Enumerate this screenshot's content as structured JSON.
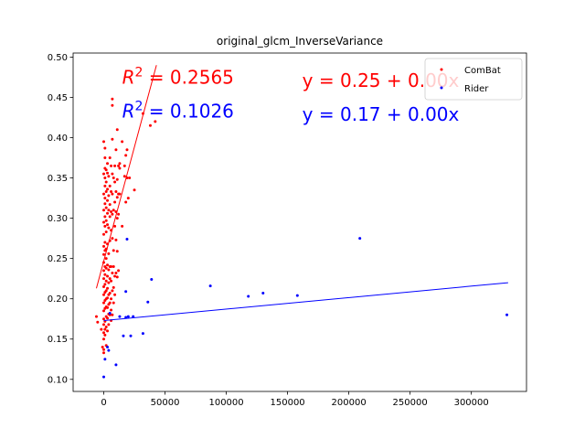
{
  "chart_data": {
    "type": "scatter",
    "title": "original_glcm_InverseVariance",
    "xlabel": "",
    "ylabel": "",
    "xlim": [
      -25000,
      345000
    ],
    "ylim": [
      0.085,
      0.505
    ],
    "x_ticks": [
      0,
      50000,
      100000,
      150000,
      200000,
      250000,
      300000
    ],
    "x_tick_labels": [
      "0",
      "50000",
      "100000",
      "150000",
      "200000",
      "250000",
      "300000"
    ],
    "y_ticks": [
      0.1,
      0.15,
      0.2,
      0.25,
      0.3,
      0.35,
      0.4,
      0.45,
      0.5
    ],
    "y_tick_labels": [
      "0.10",
      "0.15",
      "0.20",
      "0.25",
      "0.30",
      "0.35",
      "0.40",
      "0.45",
      "0.50"
    ],
    "legend_position": "top-right",
    "annotations": [
      {
        "id": "combat-r2",
        "prefix": "R",
        "sup": "2",
        "text": " = 0.2565",
        "color": "#ff0000",
        "x": 15000,
        "y": 0.467
      },
      {
        "id": "rider-r2",
        "prefix": "R",
        "sup": "2",
        "text": " = 0.1026",
        "color": "#0000ff",
        "x": 15000,
        "y": 0.425
      },
      {
        "id": "combat-eq",
        "text": "y = 0.25 + 0.00x",
        "color": "#ff0000",
        "x": 162000,
        "y": 0.463
      },
      {
        "id": "rider-eq",
        "text": "y = 0.17 + 0.00x",
        "color": "#0000ff",
        "x": 162000,
        "y": 0.421
      }
    ],
    "series": [
      {
        "name": "ComBat",
        "color": "#ff0000",
        "fit": {
          "x": [
            -6000,
            43000
          ],
          "y": [
            0.213,
            0.49
          ]
        },
        "points": [
          [
            -6000,
            0.178
          ],
          [
            -5000,
            0.171
          ],
          [
            -2000,
            0.162
          ],
          [
            -1000,
            0.14
          ],
          [
            0,
            0.395
          ],
          [
            0,
            0.355
          ],
          [
            0,
            0.33
          ],
          [
            0,
            0.31
          ],
          [
            0,
            0.295
          ],
          [
            0,
            0.28
          ],
          [
            0,
            0.265
          ],
          [
            0,
            0.255
          ],
          [
            0,
            0.245
          ],
          [
            0,
            0.235
          ],
          [
            0,
            0.225
          ],
          [
            0,
            0.215
          ],
          [
            0,
            0.205
          ],
          [
            0,
            0.195
          ],
          [
            0,
            0.185
          ],
          [
            0,
            0.175
          ],
          [
            0,
            0.168
          ],
          [
            0,
            0.158
          ],
          [
            0,
            0.15
          ],
          [
            0,
            0.137
          ],
          [
            0,
            0.133
          ],
          [
            1000,
            0.387
          ],
          [
            1000,
            0.375
          ],
          [
            1000,
            0.362
          ],
          [
            1000,
            0.35
          ],
          [
            1000,
            0.34
          ],
          [
            1000,
            0.325
          ],
          [
            1000,
            0.318
          ],
          [
            1000,
            0.302
          ],
          [
            1000,
            0.29
          ],
          [
            1000,
            0.27
          ],
          [
            1000,
            0.26
          ],
          [
            1000,
            0.24
          ],
          [
            1000,
            0.23
          ],
          [
            1000,
            0.218
          ],
          [
            1000,
            0.208
          ],
          [
            1000,
            0.198
          ],
          [
            1000,
            0.188
          ],
          [
            1000,
            0.172
          ],
          [
            1000,
            0.162
          ],
          [
            1000,
            0.155
          ],
          [
            2000,
            0.36
          ],
          [
            2000,
            0.345
          ],
          [
            2000,
            0.333
          ],
          [
            2000,
            0.313
          ],
          [
            2000,
            0.297
          ],
          [
            2000,
            0.283
          ],
          [
            2000,
            0.262
          ],
          [
            2000,
            0.25
          ],
          [
            2000,
            0.238
          ],
          [
            2000,
            0.222
          ],
          [
            2000,
            0.21
          ],
          [
            2000,
            0.2
          ],
          [
            2000,
            0.19
          ],
          [
            2000,
            0.178
          ],
          [
            2000,
            0.165
          ],
          [
            2000,
            0.142
          ],
          [
            3000,
            0.368
          ],
          [
            3000,
            0.356
          ],
          [
            3000,
            0.336
          ],
          [
            3000,
            0.322
          ],
          [
            3000,
            0.306
          ],
          [
            3000,
            0.292
          ],
          [
            3000,
            0.268
          ],
          [
            3000,
            0.242
          ],
          [
            3000,
            0.228
          ],
          [
            3000,
            0.213
          ],
          [
            3000,
            0.201
          ],
          [
            3000,
            0.189
          ],
          [
            3000,
            0.176
          ],
          [
            3000,
            0.16
          ],
          [
            4000,
            0.352
          ],
          [
            4000,
            0.328
          ],
          [
            4000,
            0.31
          ],
          [
            4000,
            0.288
          ],
          [
            4000,
            0.256
          ],
          [
            4000,
            0.236
          ],
          [
            4000,
            0.22
          ],
          [
            4000,
            0.205
          ],
          [
            4000,
            0.193
          ],
          [
            4000,
            0.181
          ],
          [
            4000,
            0.168
          ],
          [
            5000,
            0.375
          ],
          [
            5000,
            0.34
          ],
          [
            5000,
            0.317
          ],
          [
            5000,
            0.302
          ],
          [
            5000,
            0.272
          ],
          [
            5000,
            0.24
          ],
          [
            5000,
            0.225
          ],
          [
            5000,
            0.207
          ],
          [
            5000,
            0.195
          ],
          [
            5000,
            0.18
          ],
          [
            6000,
            0.365
          ],
          [
            6000,
            0.333
          ],
          [
            6000,
            0.308
          ],
          [
            6000,
            0.285
          ],
          [
            6000,
            0.24
          ],
          [
            6000,
            0.222
          ],
          [
            6000,
            0.2
          ],
          [
            6000,
            0.186
          ],
          [
            6000,
            0.173
          ],
          [
            7000,
            0.448
          ],
          [
            7000,
            0.44
          ],
          [
            7000,
            0.398
          ],
          [
            7000,
            0.355
          ],
          [
            7000,
            0.33
          ],
          [
            7000,
            0.305
          ],
          [
            7000,
            0.275
          ],
          [
            7000,
            0.232
          ],
          [
            7000,
            0.21
          ],
          [
            7000,
            0.18
          ],
          [
            8000,
            0.35
          ],
          [
            8000,
            0.31
          ],
          [
            8000,
            0.26
          ],
          [
            8000,
            0.24
          ],
          [
            8000,
            0.214
          ],
          [
            8000,
            0.195
          ],
          [
            9000,
            0.365
          ],
          [
            9000,
            0.345
          ],
          [
            9000,
            0.32
          ],
          [
            9000,
            0.29
          ],
          [
            9000,
            0.228
          ],
          [
            9000,
            0.205
          ],
          [
            10000,
            0.385
          ],
          [
            10000,
            0.333
          ],
          [
            10000,
            0.308
          ],
          [
            10000,
            0.273
          ],
          [
            10000,
            0.232
          ],
          [
            11000,
            0.41
          ],
          [
            11000,
            0.348
          ],
          [
            11000,
            0.326
          ],
          [
            11000,
            0.3
          ],
          [
            11000,
            0.259
          ],
          [
            11000,
            0.227
          ],
          [
            12000,
            0.365
          ],
          [
            12000,
            0.33
          ],
          [
            12000,
            0.305
          ],
          [
            12000,
            0.235
          ],
          [
            13000,
            0.368
          ],
          [
            13000,
            0.362
          ],
          [
            13000,
            0.33
          ],
          [
            15000,
            0.395
          ],
          [
            15000,
            0.29
          ],
          [
            17000,
            0.365
          ],
          [
            17000,
            0.352
          ],
          [
            18000,
            0.378
          ],
          [
            18000,
            0.32
          ],
          [
            19000,
            0.385
          ],
          [
            19000,
            0.35
          ],
          [
            20000,
            0.325
          ],
          [
            21000,
            0.35
          ],
          [
            25000,
            0.335
          ],
          [
            32000,
            0.43
          ],
          [
            38000,
            0.415
          ],
          [
            42000,
            0.42
          ]
        ]
      },
      {
        "name": "Rider",
        "color": "#0000ff",
        "fit": {
          "x": [
            0,
            330000
          ],
          "y": [
            0.173,
            0.22
          ]
        },
        "points": [
          [
            0,
            0.103
          ],
          [
            1000,
            0.125
          ],
          [
            3000,
            0.14
          ],
          [
            4000,
            0.136
          ],
          [
            5000,
            0.182
          ],
          [
            10000,
            0.118
          ],
          [
            13000,
            0.178
          ],
          [
            16000,
            0.154
          ],
          [
            18000,
            0.177
          ],
          [
            18000,
            0.209
          ],
          [
            19000,
            0.274
          ],
          [
            20000,
            0.178
          ],
          [
            22000,
            0.154
          ],
          [
            24000,
            0.178
          ],
          [
            32000,
            0.157
          ],
          [
            36000,
            0.196
          ],
          [
            39000,
            0.224
          ],
          [
            87000,
            0.216
          ],
          [
            118000,
            0.203
          ],
          [
            130000,
            0.207
          ],
          [
            158000,
            0.204
          ],
          [
            209000,
            0.275
          ],
          [
            329000,
            0.18
          ]
        ]
      }
    ]
  }
}
